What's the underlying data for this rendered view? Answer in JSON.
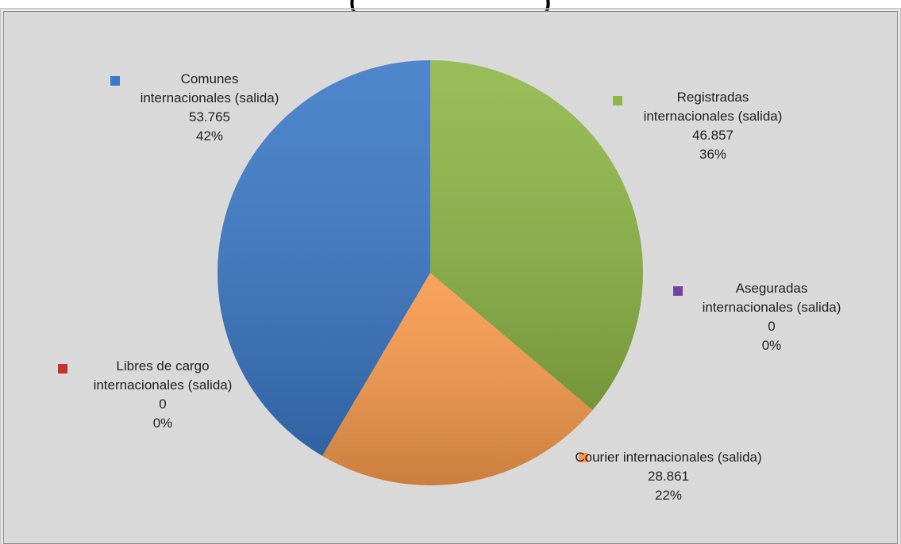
{
  "title_fragment": "(                         )",
  "chart_data": {
    "type": "pie",
    "title": "",
    "slices": [
      {
        "name": "Registradas internacionales (salida)",
        "value": 46857,
        "value_label": "46.857",
        "percent_label": "36%",
        "color": "#8db646"
      },
      {
        "name": "Aseguradas internacionales (salida)",
        "value": 0,
        "value_label": "0",
        "percent_label": "0%",
        "color": "#7044a0"
      },
      {
        "name": "Courier internacionales (salida)",
        "value": 28861,
        "value_label": "28.861",
        "percent_label": "22%",
        "color": "#f7994b"
      },
      {
        "name": "Libres de cargo internacionales (salida)",
        "value": 0,
        "value_label": "0",
        "percent_label": "0%",
        "color": "#c0342e"
      },
      {
        "name": "Comunes internacionales (salida)",
        "value": 53765,
        "value_label": "53.765",
        "percent_label": "42%",
        "color": "#3b78c6"
      }
    ]
  }
}
